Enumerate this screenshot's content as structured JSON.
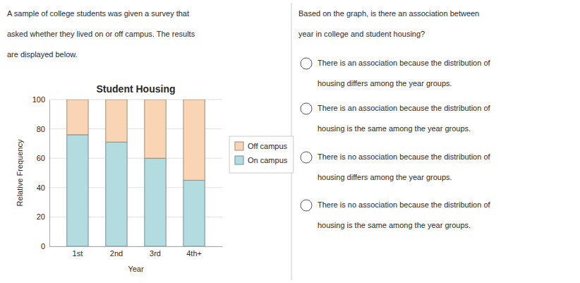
{
  "chart_data": {
    "type": "bar",
    "stacked": true,
    "title": "Student Housing",
    "categories": [
      "1st",
      "2nd",
      "3rd",
      "4th+"
    ],
    "series": [
      {
        "name": "On campus",
        "color": "#b2dce0",
        "values": [
          76,
          71,
          60,
          45
        ]
      },
      {
        "name": "Off campus",
        "color": "#f9d5b5",
        "values": [
          24,
          29,
          40,
          55
        ]
      }
    ],
    "xlabel": "Year",
    "ylabel": "Relative Frequency",
    "ylim": [
      0,
      100
    ],
    "yticks": [
      0,
      20,
      40,
      60,
      80,
      100
    ],
    "grid": true,
    "legend": "right",
    "annotations": [
      [
        "A sample of college students was given a survey that",
        "asked whether they lived on or off campus. The results",
        "are displayed below."
      ],
      [
        "Based on the graph, is there an association between",
        "year in college and student housing?"
      ],
      [
        "There is an association because the distribution of",
        "housing differs among the year groups."
      ],
      [
        "There is an association because the distribution of",
        "housing is the same among the year groups."
      ],
      [
        "There is no association because the distribution of",
        "housing differs among the year groups."
      ],
      [
        "There is no association because the distribution of",
        "housing is the same among the year groups."
      ]
    ]
  }
}
